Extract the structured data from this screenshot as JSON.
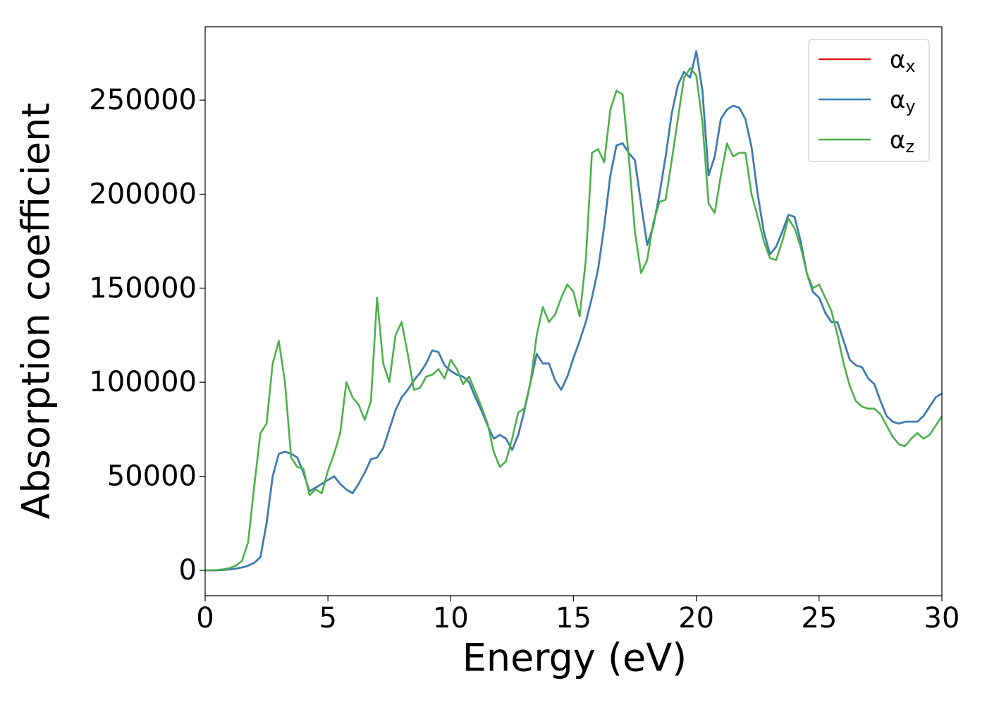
{
  "chart_data": {
    "type": "line",
    "xlabel": "Energy (eV)",
    "ylabel": "Absorption coefficient",
    "xlim": [
      0,
      30
    ],
    "ylim": [
      -13500,
      289000
    ],
    "xticks": [
      0,
      5,
      10,
      15,
      20,
      25,
      30
    ],
    "yticks": [
      0,
      50000,
      100000,
      150000,
      200000,
      250000
    ],
    "grid": false,
    "legend": "upper right",
    "x": [
      0,
      0.25,
      0.5,
      0.75,
      1,
      1.25,
      1.5,
      1.75,
      2,
      2.25,
      2.5,
      2.75,
      3,
      3.25,
      3.5,
      3.75,
      4,
      4.25,
      4.5,
      4.75,
      5,
      5.25,
      5.5,
      5.75,
      6,
      6.25,
      6.5,
      6.75,
      7,
      7.25,
      7.5,
      7.75,
      8,
      8.25,
      8.5,
      8.75,
      9,
      9.25,
      9.5,
      9.75,
      10,
      10.25,
      10.5,
      10.75,
      11,
      11.25,
      11.5,
      11.75,
      12,
      12.25,
      12.5,
      12.75,
      13,
      13.25,
      13.5,
      13.75,
      14,
      14.25,
      14.5,
      14.75,
      15,
      15.25,
      15.5,
      15.75,
      16,
      16.25,
      16.5,
      16.75,
      17,
      17.25,
      17.5,
      17.75,
      18,
      18.25,
      18.5,
      18.75,
      19,
      19.25,
      19.5,
      19.75,
      20,
      20.25,
      20.5,
      20.75,
      21,
      21.25,
      21.5,
      21.75,
      22,
      22.25,
      22.5,
      22.75,
      23,
      23.25,
      23.5,
      23.75,
      24,
      24.25,
      24.5,
      24.75,
      25,
      25.25,
      25.5,
      25.75,
      26,
      26.25,
      26.5,
      26.75,
      27,
      27.25,
      27.5,
      27.75,
      28,
      28.25,
      28.5,
      28.75,
      29,
      29.25,
      29.5,
      29.75,
      30
    ],
    "series": [
      {
        "name": "αx",
        "color": "#e41a1c",
        "values": [
          0,
          0,
          0,
          200,
          500,
          900,
          1500,
          2500,
          4000,
          7000,
          25000,
          50000,
          62000,
          63000,
          62000,
          60000,
          52000,
          42000,
          44000,
          46000,
          48000,
          50000,
          46000,
          43000,
          41000,
          46000,
          52000,
          59000,
          60000,
          65000,
          75000,
          85000,
          92000,
          96000,
          101000,
          105000,
          110000,
          117000,
          116000,
          109000,
          106000,
          104000,
          103000,
          100000,
          92000,
          85000,
          77000,
          70000,
          72000,
          70000,
          64000,
          72000,
          85000,
          100000,
          115000,
          110000,
          110000,
          101000,
          96000,
          103000,
          113000,
          122000,
          132000,
          145000,
          160000,
          183000,
          210000,
          226000,
          227000,
          222000,
          218000,
          195000,
          173000,
          183000,
          200000,
          220000,
          243000,
          258000,
          265000,
          262000,
          276000,
          255000,
          210000,
          220000,
          240000,
          245000,
          247000,
          246000,
          240000,
          225000,
          200000,
          180000,
          168000,
          172000,
          180000,
          189000,
          188000,
          175000,
          158000,
          148000,
          145000,
          137000,
          132000,
          132000,
          122000,
          112000,
          109000,
          108000,
          102000,
          99000,
          90000,
          82000,
          79000,
          78000,
          79000,
          79000,
          79000,
          82000,
          87000,
          92000,
          94000
        ]
      },
      {
        "name": "αy",
        "color": "#377eb8",
        "values": [
          0,
          0,
          0,
          200,
          500,
          900,
          1500,
          2500,
          4000,
          7000,
          25000,
          50000,
          62000,
          63000,
          62000,
          60000,
          52000,
          42000,
          44000,
          46000,
          48000,
          50000,
          46000,
          43000,
          41000,
          46000,
          52000,
          59000,
          60000,
          65000,
          75000,
          85000,
          92000,
          96000,
          101000,
          105000,
          110000,
          117000,
          116000,
          109000,
          106000,
          104000,
          103000,
          100000,
          92000,
          85000,
          77000,
          70000,
          72000,
          70000,
          64000,
          72000,
          85000,
          100000,
          115000,
          110000,
          110000,
          101000,
          96000,
          103000,
          113000,
          122000,
          132000,
          145000,
          160000,
          183000,
          210000,
          226000,
          227000,
          222000,
          218000,
          195000,
          173000,
          183000,
          200000,
          220000,
          243000,
          258000,
          265000,
          262000,
          276000,
          255000,
          210000,
          220000,
          240000,
          245000,
          247000,
          246000,
          240000,
          225000,
          200000,
          180000,
          168000,
          172000,
          180000,
          189000,
          188000,
          175000,
          158000,
          148000,
          145000,
          137000,
          132000,
          132000,
          122000,
          112000,
          109000,
          108000,
          102000,
          99000,
          90000,
          82000,
          79000,
          78000,
          79000,
          79000,
          79000,
          82000,
          87000,
          92000,
          94000
        ]
      },
      {
        "name": "αz",
        "color": "#4daf4a",
        "values": [
          0,
          0,
          200,
          600,
          1200,
          2500,
          5000,
          15000,
          45000,
          73000,
          78000,
          110000,
          122000,
          100000,
          60000,
          55000,
          54000,
          40000,
          43000,
          41000,
          53000,
          62000,
          73000,
          100000,
          92000,
          88000,
          80000,
          90000,
          145000,
          110000,
          100000,
          125000,
          132000,
          115000,
          96000,
          97000,
          103000,
          104000,
          107000,
          102000,
          112000,
          107000,
          99000,
          103000,
          95000,
          87000,
          78000,
          63000,
          55000,
          58000,
          70000,
          84000,
          86000,
          100000,
          125000,
          140000,
          132000,
          136000,
          145000,
          152000,
          148000,
          135000,
          165000,
          222000,
          224000,
          217000,
          245000,
          255000,
          253000,
          220000,
          180000,
          158000,
          165000,
          185000,
          196000,
          197000,
          218000,
          240000,
          262000,
          267000,
          263000,
          238000,
          195000,
          190000,
          210000,
          227000,
          220000,
          222000,
          222000,
          200000,
          188000,
          175000,
          166000,
          165000,
          175000,
          187000,
          182000,
          172000,
          158000,
          150000,
          152000,
          145000,
          138000,
          125000,
          110000,
          98000,
          90000,
          87000,
          86000,
          86000,
          83000,
          77000,
          71000,
          67000,
          66000,
          70000,
          73000,
          70000,
          72000,
          77000,
          82000
        ]
      }
    ]
  }
}
